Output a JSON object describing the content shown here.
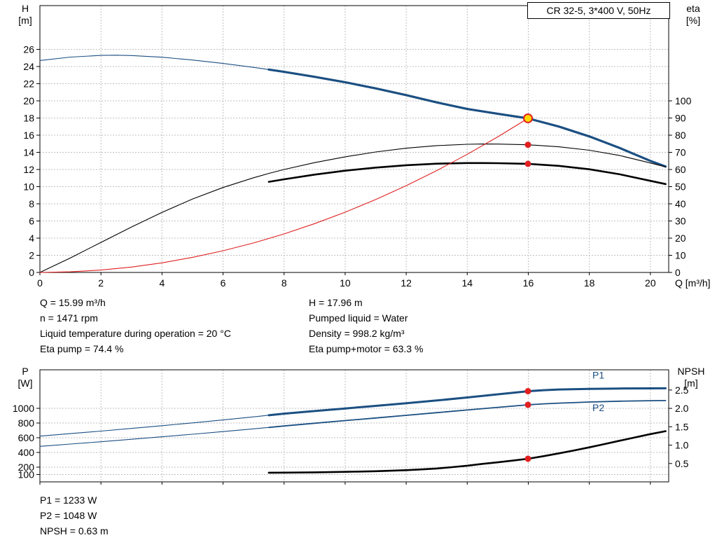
{
  "info_top": {
    "left": [
      "Q = 15.99 m³/h",
      "n = 1471 rpm",
      "Liquid temperature during operation = 20 °C",
      "Eta pump = 74.4 %"
    ],
    "right": [
      "H = 17.96 m",
      "Pumped liquid = Water",
      "Density = 998.2 kg/m³",
      "Eta pump+motor = 63.3 %"
    ]
  },
  "info_bottom": [
    "P1 = 1233 W",
    "P2 = 1048 W",
    "NPSH = 0.63 m"
  ],
  "colors": {
    "curve_blue": "#1b4f82",
    "curve_black": "#000000",
    "curve_red": "#e02020",
    "marker_yellow": "#ffd800",
    "marker_red": "#e02020"
  },
  "chart_data": [
    {
      "type": "line",
      "name": "qh-eta-chart",
      "title": "CR 32-5, 3*400 V, 50Hz",
      "x_axis": {
        "label": "Q [m³/h]",
        "min": 0,
        "max": 20.6,
        "tick_values": [
          0,
          2,
          4,
          6,
          8,
          10,
          12,
          14,
          16,
          18,
          20
        ],
        "tick_labels": [
          "0",
          "2",
          "4",
          "6",
          "8",
          "10",
          "12",
          "14",
          "16",
          "18",
          "20"
        ],
        "show_tick_labels": true
      },
      "y_left": {
        "label_line1": "H",
        "label_line2": "[m]",
        "min": 0,
        "max": 31.1,
        "tick_values": [
          0,
          2,
          4,
          6,
          8,
          10,
          12,
          14,
          16,
          18,
          20,
          22,
          24,
          26
        ],
        "tick_labels": [
          "0",
          "2",
          "4",
          "6",
          "8",
          "10",
          "12",
          "14",
          "16",
          "18",
          "20",
          "22",
          "24",
          "26"
        ],
        "grid": true
      },
      "y_right": {
        "label_line1": "eta",
        "label_line2": "[%]",
        "min": 0,
        "max": 155.5,
        "tick_values": [
          0,
          10,
          20,
          30,
          40,
          50,
          60,
          70,
          80,
          90,
          100
        ],
        "tick_labels": [
          "0",
          "10",
          "20",
          "30",
          "40",
          "50",
          "60",
          "70",
          "80",
          "90",
          "100"
        ],
        "grid": false
      },
      "series": [
        {
          "name": "head-curve",
          "axis": "left",
          "color": "#1b4f82",
          "split_q": 7.5,
          "width_thin": 1.1,
          "width_thick": 3.2,
          "points": [
            [
              0,
              24.7
            ],
            [
              1,
              25.1
            ],
            [
              2,
              25.3
            ],
            [
              2.5,
              25.32
            ],
            [
              3,
              25.28
            ],
            [
              4,
              25.08
            ],
            [
              5,
              24.76
            ],
            [
              6,
              24.36
            ],
            [
              7,
              23.9
            ],
            [
              7.5,
              23.65
            ],
            [
              8,
              23.38
            ],
            [
              9,
              22.8
            ],
            [
              10,
              22.17
            ],
            [
              11,
              21.45
            ],
            [
              12,
              20.67
            ],
            [
              13,
              19.82
            ],
            [
              14,
              19.05
            ],
            [
              15,
              18.5
            ],
            [
              15.99,
              17.96
            ],
            [
              17,
              17.0
            ],
            [
              18,
              15.85
            ],
            [
              19,
              14.5
            ],
            [
              20,
              13.0
            ],
            [
              20.5,
              12.35
            ]
          ]
        },
        {
          "name": "eta-pump-curve",
          "axis": "right",
          "color": "#000000",
          "split_q": null,
          "width_thin": 1.1,
          "width_thick": 1.1,
          "points": [
            [
              0,
              0
            ],
            [
              1,
              8.5
            ],
            [
              2,
              17.5
            ],
            [
              3,
              26.5
            ],
            [
              4,
              35
            ],
            [
              5,
              42.8
            ],
            [
              6,
              49.5
            ],
            [
              7,
              55.2
            ],
            [
              7.5,
              57.7
            ],
            [
              8,
              60
            ],
            [
              9,
              64
            ],
            [
              10,
              67.4
            ],
            [
              11,
              70.2
            ],
            [
              12,
              72.4
            ],
            [
              13,
              73.9
            ],
            [
              14,
              74.7
            ],
            [
              14.5,
              74.85
            ],
            [
              15,
              74.8
            ],
            [
              15.99,
              74.4
            ],
            [
              17,
              73.2
            ],
            [
              18,
              71.2
            ],
            [
              19,
              68.1
            ],
            [
              20,
              63.8
            ],
            [
              20.5,
              61.5
            ]
          ]
        },
        {
          "name": "eta-pump-motor-curve",
          "axis": "right",
          "color": "#000000",
          "split_q": null,
          "width_thin": 2.6,
          "width_thick": 2.6,
          "points": [
            [
              7.5,
              52.8
            ],
            [
              8,
              54.3
            ],
            [
              9,
              57
            ],
            [
              10,
              59.3
            ],
            [
              11,
              61.1
            ],
            [
              12,
              62.5
            ],
            [
              13,
              63.4
            ],
            [
              14,
              63.75
            ],
            [
              14.5,
              63.75
            ],
            [
              15,
              63.65
            ],
            [
              15.99,
              63.3
            ],
            [
              17,
              62.1
            ],
            [
              18,
              60.1
            ],
            [
              19,
              57.2
            ],
            [
              20,
              53.4
            ],
            [
              20.5,
              51.5
            ]
          ]
        },
        {
          "name": "system-curve",
          "axis": "left",
          "color": "#e02020",
          "split_q": null,
          "width_thin": 1.1,
          "width_thick": 1.1,
          "points": [
            [
              0,
              0
            ],
            [
              1,
              0.07
            ],
            [
              2,
              0.28
            ],
            [
              3,
              0.63
            ],
            [
              4,
              1.12
            ],
            [
              5,
              1.76
            ],
            [
              6,
              2.53
            ],
            [
              7,
              3.44
            ],
            [
              8,
              4.49
            ],
            [
              9,
              5.69
            ],
            [
              10,
              7.02
            ],
            [
              11,
              8.5
            ],
            [
              12,
              10.11
            ],
            [
              13,
              11.87
            ],
            [
              14,
              13.77
            ],
            [
              15,
              15.8
            ],
            [
              15.99,
              17.96
            ]
          ]
        }
      ],
      "markers": [
        {
          "name": "duty-point",
          "q": 15.99,
          "value": 17.96,
          "axis": "left",
          "fill": "#ffd800",
          "stroke": "#e02020",
          "r": 6
        },
        {
          "name": "eta-pump-point",
          "q": 15.99,
          "value": 74.4,
          "axis": "right",
          "fill": "#e02020",
          "r": 4.5
        },
        {
          "name": "eta-pump-motor-point",
          "q": 15.99,
          "value": 63.3,
          "axis": "right",
          "fill": "#e02020",
          "r": 4.5
        }
      ]
    },
    {
      "type": "line",
      "name": "power-npsh-chart",
      "x_axis": {
        "label": "",
        "min": 0,
        "max": 20.6,
        "tick_values": [
          0,
          2,
          4,
          6,
          8,
          10,
          12,
          14,
          16,
          18,
          20
        ],
        "tick_labels": [
          "0",
          "2",
          "4",
          "6",
          "8",
          "10",
          "12",
          "14",
          "16",
          "18",
          "20"
        ],
        "show_tick_labels": false
      },
      "y_left": {
        "label_line1": "P",
        "label_line2": "[W]",
        "min": 0,
        "max": 1524,
        "tick_values": [
          100,
          200,
          400,
          600,
          800,
          1000
        ],
        "tick_labels": [
          "100",
          "200",
          "400",
          "600",
          "800",
          "1000"
        ],
        "grid": true
      },
      "y_right": {
        "label_line1": "NPSH",
        "label_line2": "[m]",
        "min": 0,
        "max": 3.05,
        "tick_values": [
          0.5,
          1.0,
          1.5,
          2.0,
          2.5
        ],
        "tick_labels": [
          "0.5",
          "1.0",
          "1.5",
          "2.0",
          "2.5"
        ],
        "grid": false
      },
      "series": [
        {
          "name": "p1-curve",
          "axis": "left",
          "color": "#1b4f82",
          "split_q": 7.5,
          "width_thin": 1.1,
          "width_thick": 3.0,
          "label": {
            "text": "P1",
            "q": 18.1,
            "value": 1405
          },
          "points": [
            [
              0,
              622
            ],
            [
              1,
              656
            ],
            [
              2,
              691
            ],
            [
              3,
              727
            ],
            [
              4,
              764
            ],
            [
              5,
              802
            ],
            [
              6,
              842
            ],
            [
              7,
              884
            ],
            [
              7.5,
              906
            ],
            [
              8,
              928
            ],
            [
              9,
              963
            ],
            [
              10,
              998
            ],
            [
              11,
              1033
            ],
            [
              12,
              1069
            ],
            [
              13,
              1107
            ],
            [
              14,
              1148
            ],
            [
              15,
              1191
            ],
            [
              15.99,
              1233
            ],
            [
              16.5,
              1247
            ],
            [
              17,
              1256
            ],
            [
              18,
              1265
            ],
            [
              19,
              1270
            ],
            [
              20,
              1272
            ],
            [
              20.5,
              1273
            ]
          ]
        },
        {
          "name": "p2-curve",
          "axis": "left",
          "color": "#1b4f82",
          "split_q": 7.5,
          "width_thin": 1.1,
          "width_thick": 1.8,
          "label": {
            "text": "P2",
            "q": 18.1,
            "value": 960
          },
          "points": [
            [
              0,
              483
            ],
            [
              1,
              514
            ],
            [
              2,
              546
            ],
            [
              3,
              579
            ],
            [
              4,
              613
            ],
            [
              5,
              648
            ],
            [
              6,
              684
            ],
            [
              7,
              721
            ],
            [
              7.5,
              740
            ],
            [
              8,
              760
            ],
            [
              9,
              797
            ],
            [
              10,
              833
            ],
            [
              11,
              869
            ],
            [
              12,
              905
            ],
            [
              13,
              941
            ],
            [
              14,
              977
            ],
            [
              15,
              1013
            ],
            [
              15.99,
              1048
            ],
            [
              16.5,
              1061
            ],
            [
              17,
              1071
            ],
            [
              18,
              1086
            ],
            [
              19,
              1097
            ],
            [
              20,
              1104
            ],
            [
              20.5,
              1106
            ]
          ]
        },
        {
          "name": "npsh-curve",
          "axis": "right",
          "color": "#000000",
          "split_q": null,
          "width_thin": 2.6,
          "width_thick": 2.6,
          "points": [
            [
              7.5,
              0.25
            ],
            [
              8,
              0.252
            ],
            [
              9,
              0.26
            ],
            [
              10,
              0.272
            ],
            [
              11,
              0.29
            ],
            [
              12,
              0.318
            ],
            [
              12.5,
              0.34
            ],
            [
              13,
              0.365
            ],
            [
              13.5,
              0.4
            ],
            [
              14,
              0.44
            ],
            [
              14.5,
              0.49
            ],
            [
              15,
              0.532
            ],
            [
              15.5,
              0.58
            ],
            [
              15.99,
              0.63
            ],
            [
              16.5,
              0.7
            ],
            [
              17,
              0.775
            ],
            [
              17.5,
              0.855
            ],
            [
              18,
              0.94
            ],
            [
              18.5,
              1.03
            ],
            [
              19,
              1.12
            ],
            [
              19.5,
              1.21
            ],
            [
              20,
              1.3
            ],
            [
              20.5,
              1.38
            ]
          ]
        }
      ],
      "markers": [
        {
          "name": "p1-point",
          "q": 15.99,
          "value": 1233,
          "axis": "left",
          "fill": "#e02020",
          "r": 4.5
        },
        {
          "name": "p2-point",
          "q": 15.99,
          "value": 1048,
          "axis": "left",
          "fill": "#e02020",
          "r": 4.5
        },
        {
          "name": "npsh-point",
          "q": 15.99,
          "value": 0.63,
          "axis": "right",
          "fill": "#e02020",
          "r": 4.5
        }
      ]
    }
  ]
}
